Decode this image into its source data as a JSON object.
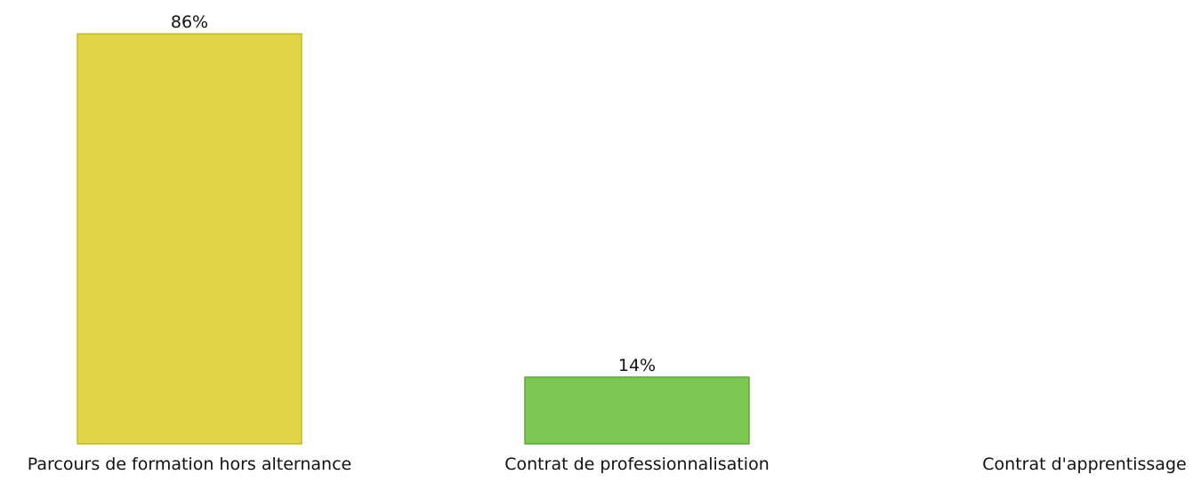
{
  "chart_data": {
    "type": "bar",
    "title": "",
    "xlabel": "",
    "ylabel": "",
    "ylim": [
      0,
      86
    ],
    "grid": false,
    "legend": "none",
    "categories": [
      "Parcours de formation hors alternance",
      "Contrat de professionnalisation",
      "Contrat d'apprentissage"
    ],
    "values": [
      86,
      14,
      0
    ],
    "value_labels": [
      "86%",
      "14%",
      ""
    ],
    "colors": [
      "#ded446",
      "#7dc853",
      "#cccccc"
    ],
    "edge_colors": [
      "#c4bb2a",
      "#5fa83a",
      "#aaaaaa"
    ]
  }
}
